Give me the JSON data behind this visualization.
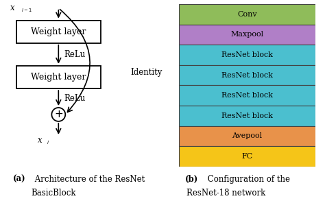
{
  "left_panel": {
    "box1_label": "Weight layer",
    "box2_label": "Weight layer",
    "relu1_label": "ReLu",
    "relu2_label": "ReLu",
    "identity_label": "Identity",
    "input_label": "x",
    "input_sub": "l−1",
    "output_label": "x",
    "output_sub": "l",
    "box_color": "#ffffff",
    "box_edge": "#000000"
  },
  "right_panel": {
    "layers": [
      "Conv",
      "Maxpool",
      "ResNet block",
      "ResNet block",
      "ResNet block",
      "ResNet block",
      "Avepool",
      "FC"
    ],
    "colors": [
      "#8fbc5a",
      "#b07fc7",
      "#4bbfcf",
      "#4bbfcf",
      "#4bbfcf",
      "#4bbfcf",
      "#e8924a",
      "#f5c518"
    ],
    "border_color": "#444444"
  },
  "caption_a_bold": "(a)",
  "caption_a_text": " Architecture of the ResNet",
  "caption_a_line2": "BasicBlock",
  "caption_b_bold": "(b)",
  "caption_b_text": " Configuration of the",
  "caption_b_line2": "ResNet-18 network"
}
